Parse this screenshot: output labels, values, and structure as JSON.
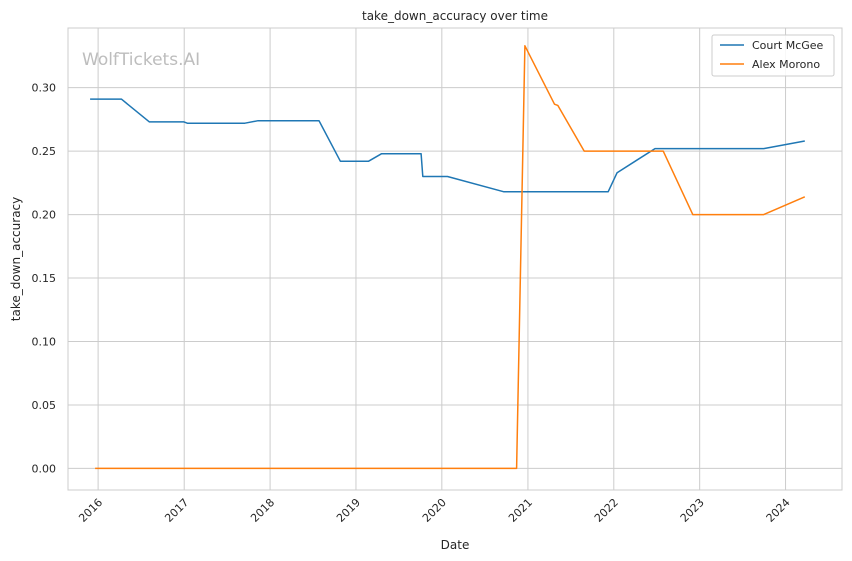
{
  "chart_data": {
    "type": "line",
    "title": "take_down_accuracy over time",
    "xlabel": "Date",
    "ylabel": "take_down_accuracy",
    "watermark": "WolfTickets.AI",
    "x_ticks": [
      "2016",
      "2017",
      "2018",
      "2019",
      "2020",
      "2021",
      "2022",
      "2023",
      "2024"
    ],
    "y_ticks": [
      "0.00",
      "0.05",
      "0.10",
      "0.15",
      "0.20",
      "0.25",
      "0.30"
    ],
    "ylim": [
      -0.017,
      0.347
    ],
    "xlim": [
      "2015-08-26",
      "2024-08-28"
    ],
    "grid": true,
    "legend_position": "top-right",
    "series": [
      {
        "name": "Court McGee",
        "color": "#1f77b4",
        "points": [
          [
            "2015-11-28",
            0.291
          ],
          [
            "2016-04-09",
            0.291
          ],
          [
            "2016-08-06",
            0.273
          ],
          [
            "2016-12-31",
            0.273
          ],
          [
            "2017-01-14",
            0.272
          ],
          [
            "2017-09-16",
            0.272
          ],
          [
            "2017-11-11",
            0.274
          ],
          [
            "2018-07-28",
            0.274
          ],
          [
            "2018-10-27",
            0.242
          ],
          [
            "2019-02-23",
            0.242
          ],
          [
            "2019-04-20",
            0.248
          ],
          [
            "2019-10-05",
            0.248
          ],
          [
            "2019-10-12",
            0.23
          ],
          [
            "2020-01-25",
            0.23
          ],
          [
            "2020-09-19",
            0.218
          ],
          [
            "2021-10-20",
            0.218
          ],
          [
            "2021-12-08",
            0.218
          ],
          [
            "2022-01-15",
            0.233
          ],
          [
            "2022-06-25",
            0.252
          ],
          [
            "2023-09-30",
            0.252
          ],
          [
            "2024-03-23",
            0.258
          ]
        ]
      },
      {
        "name": "Alex Morono",
        "color": "#ff7f0e",
        "points": [
          [
            "2015-12-19",
            0.0
          ],
          [
            "2020-11-14",
            0.0
          ],
          [
            "2020-12-19",
            0.333
          ],
          [
            "2021-04-24",
            0.287
          ],
          [
            "2021-05-08",
            0.286
          ],
          [
            "2021-08-28",
            0.25
          ],
          [
            "2022-07-30",
            0.25
          ],
          [
            "2022-12-03",
            0.2
          ],
          [
            "2023-09-30",
            0.2
          ],
          [
            "2024-03-23",
            0.214
          ]
        ]
      }
    ]
  }
}
